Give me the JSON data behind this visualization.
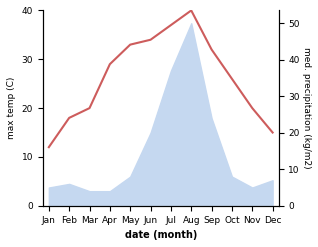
{
  "months": [
    "Jan",
    "Feb",
    "Mar",
    "Apr",
    "May",
    "Jun",
    "Jul",
    "Aug",
    "Sep",
    "Oct",
    "Nov",
    "Dec"
  ],
  "temperature": [
    12,
    18,
    20,
    29,
    33,
    34,
    37,
    40,
    32,
    26,
    20,
    15
  ],
  "precipitation": [
    5,
    6,
    4,
    4,
    8,
    20,
    37,
    50,
    24,
    8,
    5,
    7
  ],
  "temp_color": "#cd5c5c",
  "precip_fill_color": "#c5d8f0",
  "ylim_left": [
    0,
    40
  ],
  "ylim_right": [
    0,
    53.5
  ],
  "xlabel": "date (month)",
  "ylabel_left": "max temp (C)",
  "ylabel_right": "med. precipitation (kg/m2)",
  "yticks_left": [
    0,
    10,
    20,
    30,
    40
  ],
  "yticks_right": [
    0,
    10,
    20,
    30,
    40,
    50
  ],
  "bg_color": "#ffffff"
}
